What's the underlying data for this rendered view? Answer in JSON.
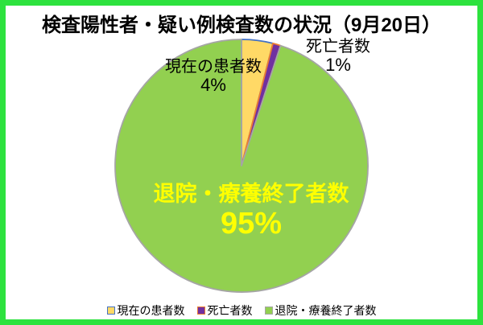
{
  "title": "検査陽性者・疑い例検査数の状況（9月20日）",
  "chart_data": {
    "type": "pie",
    "title": "検査陽性者・疑い例検査数の状況（9月20日）",
    "categories": [
      "現在の患者数",
      "死亡者数",
      "退院・療養終了者数"
    ],
    "values": [
      4,
      1,
      95
    ],
    "unit": "%",
    "labels_pct": [
      "4%",
      "1%",
      "95%"
    ],
    "start_angle_deg": 0,
    "direction": "clockwise",
    "slice_fill_colors": [
      "#FFD966",
      "#7030A0",
      "#92D050"
    ],
    "slice_border_colors": [
      "#4472C4",
      "#ED7D31",
      "#A5A5A5"
    ],
    "legend_position": "bottom",
    "center_label_color": "#FFFF00"
  },
  "colors": {
    "frame_border": "#2DE23E",
    "background": "#FFFFFF",
    "label_text": "#000000"
  }
}
